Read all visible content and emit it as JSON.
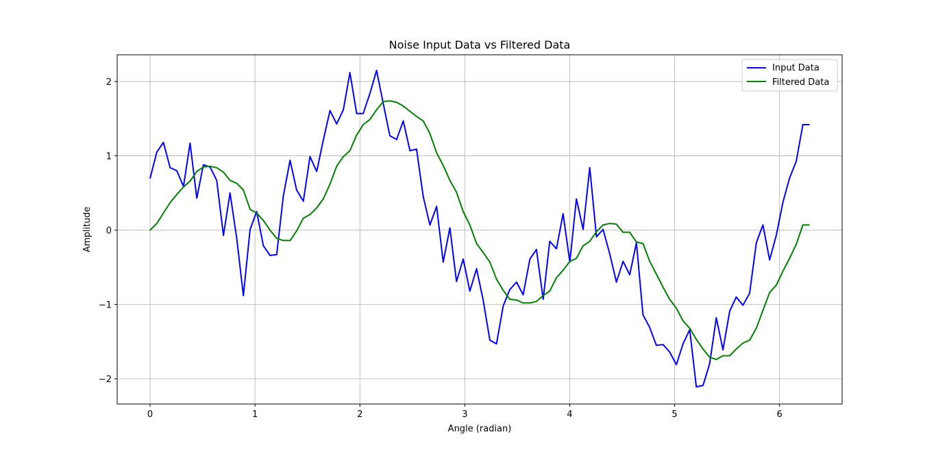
{
  "chart_data": {
    "type": "line",
    "title": "Noise Input Data vs Filtered Data",
    "xlabel": "Angle (radian)",
    "ylabel": "Amplitude",
    "xlim": [
      -0.314,
      6.597
    ],
    "ylim": [
      -2.34,
      2.36
    ],
    "xticks": [
      0,
      1,
      2,
      3,
      4,
      5,
      6
    ],
    "xtick_labels": [
      "0",
      "1",
      "2",
      "3",
      "4",
      "5",
      "6"
    ],
    "yticks": [
      -2,
      -1,
      0,
      1,
      2
    ],
    "ytick_labels": [
      "−2",
      "−1",
      "0",
      "1",
      "2"
    ],
    "grid": true,
    "legend_position": "top-right",
    "series": [
      {
        "name": "Input Data",
        "color": "#0000ff",
        "x": [
          0,
          0.064,
          0.127,
          0.191,
          0.254,
          0.318,
          0.381,
          0.445,
          0.508,
          0.572,
          0.635,
          0.699,
          0.762,
          0.826,
          0.889,
          0.953,
          1.016,
          1.08,
          1.143,
          1.207,
          1.27,
          1.334,
          1.397,
          1.461,
          1.524,
          1.588,
          1.651,
          1.715,
          1.778,
          1.842,
          1.905,
          1.969,
          2.032,
          2.096,
          2.159,
          2.223,
          2.286,
          2.35,
          2.413,
          2.477,
          2.54,
          2.604,
          2.667,
          2.731,
          2.794,
          2.858,
          2.921,
          2.985,
          3.048,
          3.112,
          3.175,
          3.239,
          3.302,
          3.366,
          3.429,
          3.493,
          3.556,
          3.62,
          3.683,
          3.747,
          3.81,
          3.874,
          3.937,
          4.001,
          4.064,
          4.128,
          4.191,
          4.255,
          4.318,
          4.382,
          4.445,
          4.509,
          4.572,
          4.636,
          4.699,
          4.763,
          4.826,
          4.89,
          4.953,
          5.017,
          5.08,
          5.144,
          5.207,
          5.271,
          5.334,
          5.398,
          5.461,
          5.525,
          5.588,
          5.652,
          5.715,
          5.779,
          5.842,
          5.906,
          5.969,
          6.033,
          6.096,
          6.16,
          6.223,
          6.283
        ],
        "values": [
          0.7,
          1.05,
          1.18,
          0.84,
          0.8,
          0.59,
          1.17,
          0.43,
          0.88,
          0.85,
          0.67,
          -0.07,
          0.5,
          -0.11,
          -0.88,
          0.01,
          0.25,
          -0.21,
          -0.34,
          -0.33,
          0.46,
          0.94,
          0.54,
          0.39,
          0.99,
          0.79,
          1.21,
          1.61,
          1.43,
          1.62,
          2.12,
          1.57,
          1.57,
          1.84,
          2.15,
          1.7,
          1.27,
          1.22,
          1.47,
          1.07,
          1.09,
          0.45,
          0.07,
          0.32,
          -0.43,
          0.03,
          -0.69,
          -0.39,
          -0.82,
          -0.52,
          -0.94,
          -1.48,
          -1.53,
          -1.02,
          -0.8,
          -0.7,
          -0.87,
          -0.39,
          -0.26,
          -0.93,
          -0.15,
          -0.25,
          0.22,
          -0.43,
          0.42,
          0.01,
          0.84,
          -0.09,
          0.01,
          -0.32,
          -0.7,
          -0.42,
          -0.6,
          -0.17,
          -1.14,
          -1.31,
          -1.55,
          -1.54,
          -1.64,
          -1.81,
          -1.53,
          -1.34,
          -2.11,
          -2.09,
          -1.8,
          -1.18,
          -1.61,
          -1.09,
          -0.9,
          -1.01,
          -0.85,
          -0.17,
          0.07,
          -0.4,
          -0.07,
          0.38,
          0.7,
          0.93,
          1.42,
          1.42
        ]
      },
      {
        "name": "Filtered Data",
        "color": "#008000",
        "x": [
          0,
          0.064,
          0.127,
          0.191,
          0.254,
          0.318,
          0.381,
          0.445,
          0.508,
          0.572,
          0.635,
          0.699,
          0.762,
          0.826,
          0.889,
          0.953,
          1.016,
          1.08,
          1.143,
          1.207,
          1.27,
          1.334,
          1.397,
          1.461,
          1.524,
          1.588,
          1.651,
          1.715,
          1.778,
          1.842,
          1.905,
          1.969,
          2.032,
          2.096,
          2.159,
          2.223,
          2.286,
          2.35,
          2.413,
          2.477,
          2.54,
          2.604,
          2.667,
          2.731,
          2.794,
          2.858,
          2.921,
          2.985,
          3.048,
          3.112,
          3.175,
          3.239,
          3.302,
          3.366,
          3.429,
          3.493,
          3.556,
          3.62,
          3.683,
          3.747,
          3.81,
          3.874,
          3.937,
          4.001,
          4.064,
          4.128,
          4.191,
          4.255,
          4.318,
          4.382,
          4.445,
          4.509,
          4.572,
          4.636,
          4.699,
          4.763,
          4.826,
          4.89,
          4.953,
          5.017,
          5.08,
          5.144,
          5.207,
          5.271,
          5.334,
          5.398,
          5.461,
          5.525,
          5.588,
          5.652,
          5.715,
          5.779,
          5.842,
          5.906,
          5.969,
          6.033,
          6.096,
          6.16,
          6.223,
          6.283
        ],
        "values": [
          0.0,
          0.09,
          0.23,
          0.37,
          0.48,
          0.58,
          0.66,
          0.79,
          0.85,
          0.86,
          0.84,
          0.78,
          0.67,
          0.63,
          0.54,
          0.28,
          0.23,
          0.13,
          0.0,
          -0.11,
          -0.14,
          -0.14,
          -0.01,
          0.16,
          0.21,
          0.3,
          0.42,
          0.62,
          0.86,
          0.99,
          1.07,
          1.28,
          1.42,
          1.49,
          1.62,
          1.73,
          1.74,
          1.72,
          1.67,
          1.6,
          1.53,
          1.47,
          1.3,
          1.04,
          0.87,
          0.67,
          0.51,
          0.25,
          0.07,
          -0.18,
          -0.3,
          -0.43,
          -0.66,
          -0.81,
          -0.93,
          -0.94,
          -0.98,
          -0.98,
          -0.96,
          -0.88,
          -0.82,
          -0.64,
          -0.54,
          -0.42,
          -0.38,
          -0.21,
          -0.15,
          -0.02,
          0.07,
          0.09,
          0.08,
          -0.03,
          -0.03,
          -0.16,
          -0.18,
          -0.42,
          -0.59,
          -0.77,
          -0.93,
          -1.05,
          -1.22,
          -1.32,
          -1.47,
          -1.6,
          -1.71,
          -1.74,
          -1.69,
          -1.69,
          -1.6,
          -1.52,
          -1.48,
          -1.32,
          -1.08,
          -0.84,
          -0.74,
          -0.55,
          -0.38,
          -0.19,
          0.07,
          0.07
        ]
      }
    ]
  }
}
